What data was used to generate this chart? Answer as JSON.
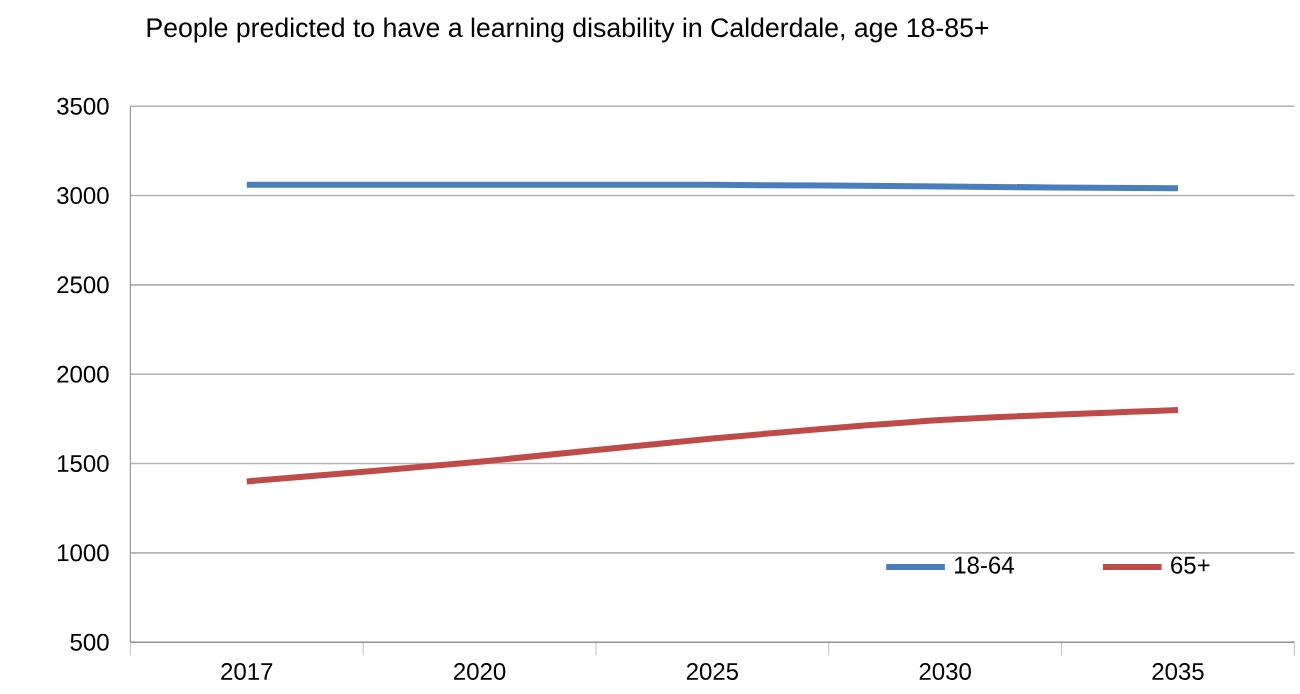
{
  "chart_data": {
    "type": "line",
    "title": "People predicted to have a learning disability in Calderdale, age 18-85+",
    "categories": [
      "2017",
      "2020",
      "2025",
      "2030",
      "2035"
    ],
    "series": [
      {
        "name": "18-64",
        "color": "#4a7ebb",
        "values": [
          3060,
          3060,
          3060,
          3050,
          3040
        ]
      },
      {
        "name": "65+",
        "color": "#be4b48",
        "values": [
          1400,
          1510,
          1640,
          1745,
          1800
        ]
      }
    ],
    "ylim": [
      500,
      3500
    ],
    "yticks": [
      500,
      1000,
      1500,
      2000,
      2500,
      3000,
      3500
    ],
    "grid": "y",
    "legend": "bottom right",
    "marker": "none",
    "line_style": "solid"
  }
}
